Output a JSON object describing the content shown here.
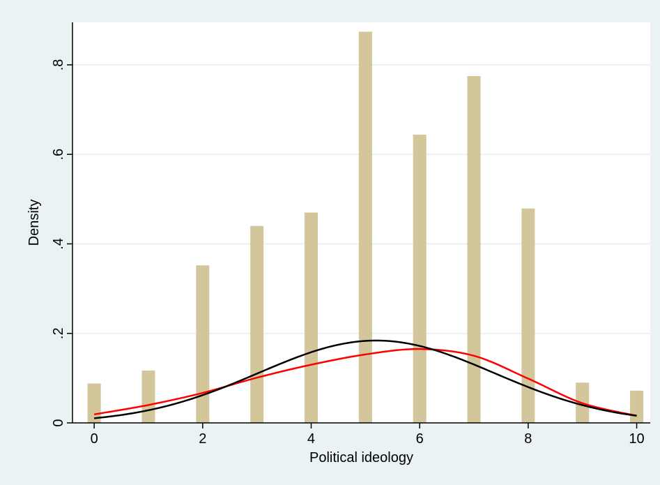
{
  "chart_data": {
    "type": "bar",
    "xlabel": "Political ideology",
    "ylabel": "Density",
    "xlim": [
      -0.4,
      10.25
    ],
    "ylim": [
      0,
      0.895
    ],
    "x_ticks": [
      0,
      2,
      4,
      6,
      8,
      10
    ],
    "x_tick_labels": [
      "0",
      "2",
      "4",
      "6",
      "8",
      "10"
    ],
    "y_ticks": [
      0,
      0.2,
      0.4,
      0.6,
      0.8
    ],
    "y_tick_labels": [
      "0",
      ".2",
      ".4",
      ".6",
      ".8"
    ],
    "grid": true,
    "series": [
      {
        "type": "bar",
        "x": [
          0,
          1,
          2,
          3,
          4,
          5,
          6,
          7,
          8,
          9,
          10
        ],
        "values": [
          0.088,
          0.117,
          0.352,
          0.44,
          0.47,
          0.874,
          0.644,
          0.775,
          0.479,
          0.09,
          0.072
        ],
        "color": "#d2c69a"
      },
      {
        "type": "line",
        "x": [
          0,
          1,
          2,
          3,
          4,
          5,
          6,
          7,
          8,
          9,
          10
        ],
        "values": [
          0.019,
          0.04,
          0.067,
          0.101,
          0.13,
          0.153,
          0.165,
          0.15,
          0.099,
          0.044,
          0.016
        ],
        "color": "#ff0000"
      },
      {
        "type": "line",
        "distribution": "normal",
        "mean": 5.2,
        "peak": 0.184,
        "sd": 2.17,
        "color": "#000000"
      }
    ],
    "colors": {
      "background": "#eaf2f3",
      "plot_background": "#ffffff",
      "grid": "#eaf2f3"
    }
  }
}
